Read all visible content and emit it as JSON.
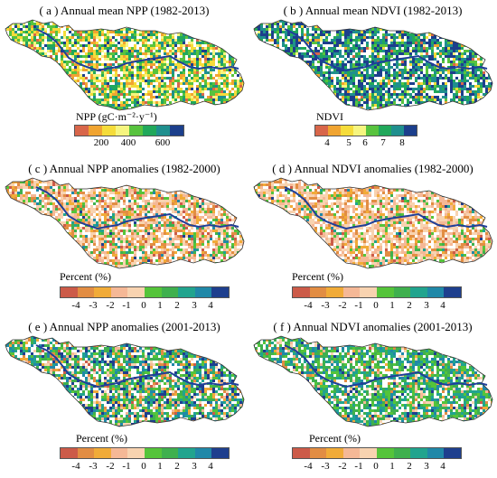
{
  "colors": {
    "npp_ndvi": [
      "#d8664a",
      "#f0a431",
      "#f5dc3a",
      "#f6f57f",
      "#58c33e",
      "#21a85b",
      "#1f8f8e",
      "#1c3f8c"
    ],
    "anomaly": [
      "#cc5b49",
      "#e28d43",
      "#f1ab38",
      "#f5b896",
      "#f8d3b0",
      "#55c43a",
      "#3fb04e",
      "#21a48e",
      "#2088a8",
      "#1e3f8e"
    ],
    "river": "#1f3f99",
    "outline": "#333333"
  },
  "panels": [
    {
      "id": "a",
      "title": "( a )  Annual mean NPP (1982-2013)",
      "legend_title_html": "NPP (gC·m⁻²·y⁻¹)",
      "legend_title": "NPP (gC·m⁻²·y⁻¹)",
      "legend_type": "npp",
      "ticks": [
        "200",
        "400",
        "600"
      ],
      "map_palette": "npp_ndvi",
      "map_bias": [
        0.05,
        0.15,
        0.18,
        0.12,
        0.2,
        0.15,
        0.1,
        0.05
      ]
    },
    {
      "id": "b",
      "title": "( b )  Annual mean NDVI (1982-2013)",
      "legend_title": "NDVI",
      "legend_type": "ndvi",
      "ticks": [
        "4",
        "5",
        "6",
        "7",
        "8"
      ],
      "map_palette": "npp_ndvi",
      "map_bias": [
        0.02,
        0.04,
        0.04,
        0.04,
        0.12,
        0.18,
        0.28,
        0.28
      ]
    },
    {
      "id": "c",
      "title": "( c )  Annual NPP anomalies (1982-2000)",
      "legend_title": "Percent (%)",
      "legend_type": "anom",
      "ticks": [
        "-4",
        "-3",
        "-2",
        "-1",
        "0",
        "1",
        "2",
        "3",
        "4"
      ],
      "map_palette": "anomaly",
      "map_bias": [
        0.06,
        0.14,
        0.12,
        0.2,
        0.26,
        0.1,
        0.06,
        0.03,
        0.02,
        0.01
      ]
    },
    {
      "id": "d",
      "title": "( d )  Annual NDVI anomalies (1982-2000)",
      "legend_title": "Percent (%)",
      "legend_type": "anom",
      "ticks": [
        "-4",
        "-3",
        "-2",
        "-1",
        "0",
        "1",
        "2",
        "3",
        "4"
      ],
      "map_palette": "anomaly",
      "map_bias": [
        0.04,
        0.14,
        0.12,
        0.24,
        0.3,
        0.08,
        0.04,
        0.02,
        0.01,
        0.01
      ]
    },
    {
      "id": "e",
      "title": "( e )  Annual NPP anomalies (2001-2013)",
      "legend_title": "Percent (%)",
      "legend_type": "anom",
      "ticks": [
        "-4",
        "-3",
        "-2",
        "-1",
        "0",
        "1",
        "2",
        "3",
        "4"
      ],
      "map_palette": "anomaly",
      "map_bias": [
        0.02,
        0.06,
        0.06,
        0.06,
        0.06,
        0.14,
        0.18,
        0.16,
        0.12,
        0.14
      ]
    },
    {
      "id": "f",
      "title": "( f )  Annual NDVI anomalies (2001-2013)",
      "legend_title": "Percent (%)",
      "legend_type": "anom",
      "ticks": [
        "-4",
        "-3",
        "-2",
        "-1",
        "0",
        "1",
        "2",
        "3",
        "4"
      ],
      "map_palette": "anomaly",
      "map_bias": [
        0.01,
        0.03,
        0.03,
        0.04,
        0.06,
        0.22,
        0.24,
        0.2,
        0.12,
        0.05
      ]
    }
  ]
}
